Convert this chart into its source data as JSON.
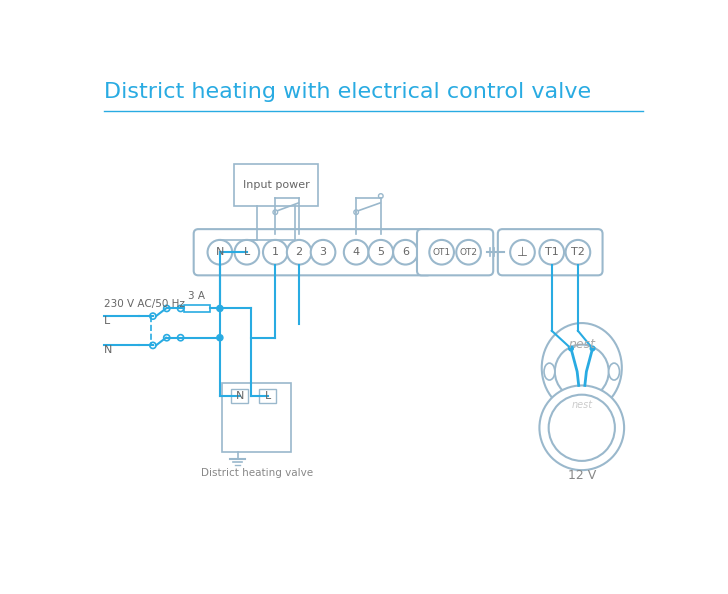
{
  "title": "District heating with electrical control valve",
  "title_color": "#29abe2",
  "title_fontsize": 16,
  "bg_color": "#ffffff",
  "lc": "#29abe2",
  "cc": "#9ab8cc",
  "label_230v": "230 V AC/50 Hz",
  "label_L": "L",
  "label_N": "N",
  "label_3A": "3 A",
  "label_input_power": "Input power",
  "label_district": "District heating valve",
  "label_nest": "nest",
  "label_12v": "12 V"
}
